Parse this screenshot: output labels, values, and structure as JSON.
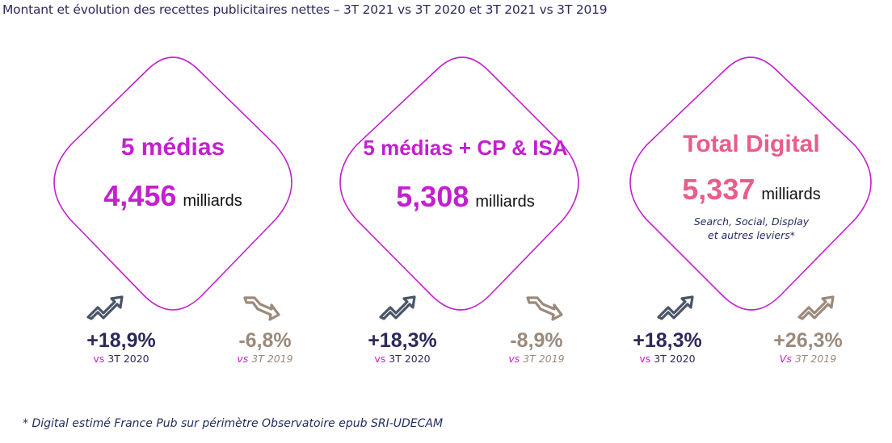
{
  "title": "Montant et évolution des recettes publicitaires nettes  – 3T 2021 vs 3T 2020 et 3T 2021 vs 3T 2019",
  "colors": {
    "accent_magenta": "#c41fcf",
    "accent_pink": "#ea5c8a",
    "navy": "#2b2a5c",
    "taupe": "#9b8a7c",
    "icon_up": "#4a5568"
  },
  "cards": [
    {
      "heading": "5 médias",
      "amount": "4,456",
      "unit": "milliards",
      "stats": [
        {
          "value": "+18,9%",
          "vs": "vs",
          "period": "3T 2020",
          "icon": "trend-up-icon",
          "tone": "navy"
        },
        {
          "value": "-6,8%",
          "vs": "vs",
          "period": "3T 2019",
          "icon": "trend-down-icon",
          "tone": "taupe"
        }
      ]
    },
    {
      "heading": "5 médias + CP & ISA",
      "amount": "5,308",
      "unit": "milliards",
      "stats": [
        {
          "value": "+18,3%",
          "vs": "vs",
          "period": "3T 2020",
          "icon": "trend-up-icon",
          "tone": "navy"
        },
        {
          "value": "-8,9%",
          "vs": "vs",
          "period": "3T 2019",
          "icon": "trend-down-icon",
          "tone": "taupe"
        }
      ]
    },
    {
      "heading": "Total Digital",
      "amount": "5,337",
      "unit": "milliards",
      "subtitle_line1": "Search, Social, Display",
      "subtitle_line2": "et autres leviers*",
      "stats": [
        {
          "value": "+18,3%",
          "vs": "vs",
          "period": "3T 2020",
          "icon": "trend-up-icon",
          "tone": "navy"
        },
        {
          "value": "+26,3%",
          "vs": "Vs",
          "period": "3T 2019",
          "icon": "trend-up-icon",
          "tone": "taupe"
        }
      ]
    }
  ],
  "footnote": "* Digital estimé France Pub sur périmètre Observatoire epub SRI-UDECAM"
}
